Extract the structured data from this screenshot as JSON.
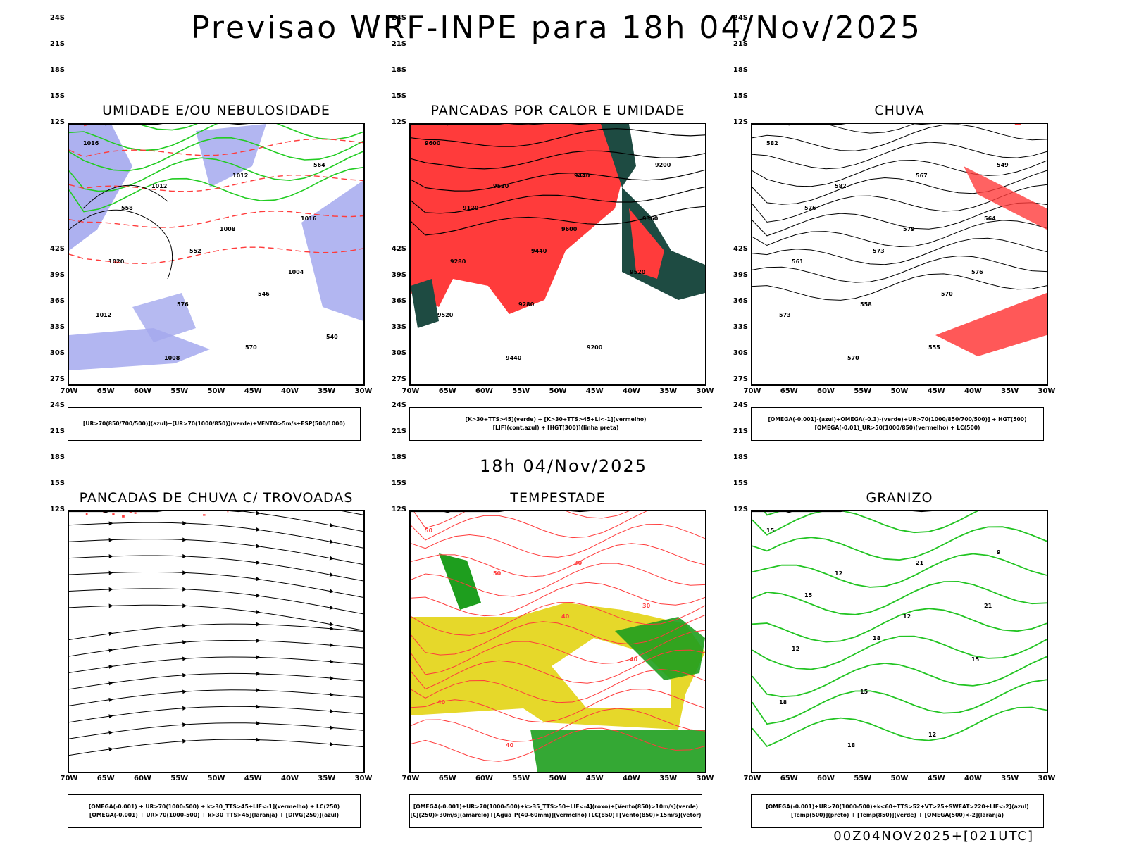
{
  "header": {
    "title": "Previsao WRF-INPE  para 18h 04/Nov/2025"
  },
  "section": {
    "subtitle": "18h 04/Nov/2025"
  },
  "footer": {
    "run_label": "00Z04NOV2025+[021UTC]"
  },
  "axes": {
    "lat_labels": [
      "12S",
      "15S",
      "18S",
      "21S",
      "24S",
      "27S",
      "30S",
      "33S",
      "36S",
      "39S",
      "42S"
    ],
    "lon_labels": [
      "70W",
      "65W",
      "60W",
      "55W",
      "50W",
      "45W",
      "40W",
      "35W",
      "30W"
    ]
  },
  "colors": {
    "blue": "#a4a9ee",
    "green": "#22cc22",
    "red": "#ff3b3b",
    "darkgreen": "#1e4b42",
    "yellow": "#e6d82a",
    "orange": "#f08a24",
    "vecgreen": "#1e9e1e"
  },
  "panels": [
    {
      "id": "umidade",
      "title": "UMIDADE E/OU NEBULOSIDADE",
      "legend": [
        "[UR>70(850/700/500)](azul)+[UR>70(1000/850)](verde)+VENTO>5m/s+ESP(500/1000)"
      ],
      "contour_labels": [
        "1016",
        "1012",
        "1008",
        "1004",
        "1012",
        "1008",
        "1012",
        "1016",
        "1020",
        "576",
        "570",
        "564",
        "558",
        "552",
        "546",
        "540"
      ]
    },
    {
      "id": "pancadas-calor",
      "title": "PANCADAS POR CALOR E UMIDADE",
      "legend": [
        "[K>30+TTS>45](verde) + [K>30+TTS>45+LI<-1](vermelho)",
        "[LIF](cont.azul) + [HGT(300)](linha preta)"
      ],
      "contour_labels": [
        "9600",
        "9520",
        "9600",
        "9520",
        "9520",
        "9440",
        "9440",
        "9360",
        "9280",
        "9280",
        "9200",
        "9200",
        "9120",
        "9440"
      ]
    },
    {
      "id": "chuva",
      "title": "CHUVA",
      "legend": [
        "[OMEGA(-0.001)-(azul)+OMEGA(-0.3)-(verde)+UR>70(1000/850/700/500)] + HGT(500)",
        "[OMEGA(-0.01)_UR>50(1000/850)(vermelho) + LC(500)"
      ],
      "contour_labels": [
        "582",
        "582",
        "579",
        "576",
        "573",
        "570",
        "567",
        "564",
        "561",
        "558",
        "555",
        "549",
        "576",
        "573",
        "570"
      ]
    },
    {
      "id": "pancadas-trovoadas",
      "title": "PANCADAS DE CHUVA C/ TROVOADAS",
      "legend": [
        "[OMEGA(-0.001) + UR>70(1000-500) + k>30_TTS>45+LIF<-1](vermelho) + LC(250)",
        "[OMEGA(-0.001) + UR>70(1000-500) + k>30_TTS>45](laranja) + [DIVG(250)](azul)"
      ],
      "contour_labels": []
    },
    {
      "id": "tempestade",
      "title": "TEMPESTADE",
      "legend": [
        "[OMEGA(-0.001)+UR>70(1000-500)+k>35_TTS>50+LIF<-4](roxo)+[Vento(850)>10m/s](verde)",
        "[CJ(250)>30m/s](amarelo)+[Agua_P(40-60mm)](vermelho)+LC(850)+[Vento(850)>15m/s](vetor)"
      ],
      "contour_labels": [
        "50",
        "50",
        "40",
        "40",
        "40",
        "40",
        "30",
        "30"
      ]
    },
    {
      "id": "granizo",
      "title": "GRANIZO",
      "legend": [
        "[OMEGA(-0.001)+UR>70(1000-500)+k<60+TTS>52+VT>25+SWEAT>220+LIF<-2](azul)",
        "[Temp(500)](preto) + [Temp(850)](verde) + [OMEGA(500)<-2](laranja)"
      ],
      "contour_labels": [
        "15",
        "12",
        "12",
        "15",
        "18",
        "18",
        "21",
        "21",
        "12",
        "15",
        "12",
        "9",
        "15",
        "18"
      ]
    }
  ]
}
